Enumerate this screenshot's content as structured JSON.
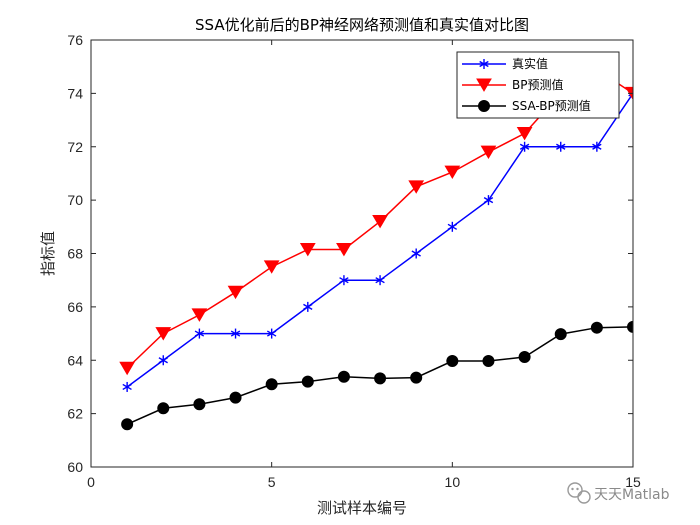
{
  "chart_data": {
    "type": "line",
    "title": "SSA优化前后的BP神经网络预测值和真实值对比图",
    "xlabel": "测试样本编号",
    "ylabel": "指标值",
    "xlim": [
      0,
      15
    ],
    "ylim": [
      60,
      76
    ],
    "xticks": [
      0,
      5,
      10,
      15
    ],
    "yticks": [
      60,
      62,
      64,
      66,
      68,
      70,
      72,
      74,
      76
    ],
    "grid": false,
    "legend_position": "top-right",
    "x": [
      1,
      2,
      3,
      4,
      5,
      6,
      7,
      8,
      9,
      10,
      11,
      12,
      13,
      14,
      15
    ],
    "series": [
      {
        "name": "真实值",
        "color": "#0000ff",
        "marker": "asterisk",
        "values": [
          63,
          64,
          65,
          65,
          65,
          66,
          67,
          67,
          68,
          69,
          70,
          72,
          72,
          72,
          74
        ]
      },
      {
        "name": "BP预测值",
        "color": "#ff0000",
        "marker": "triangle-down",
        "values": [
          63.7,
          65.0,
          65.7,
          66.55,
          67.5,
          68.15,
          68.15,
          69.2,
          70.5,
          71.05,
          71.8,
          72.5,
          74.0,
          74.9,
          74.0
        ]
      },
      {
        "name": "SSA-BP预测值",
        "color": "#000000",
        "marker": "circle",
        "values": [
          61.6,
          62.2,
          62.35,
          62.6,
          63.1,
          63.2,
          63.38,
          63.32,
          63.35,
          63.97,
          63.97,
          64.12,
          64.98,
          65.22,
          65.25
        ]
      }
    ]
  },
  "watermark": {
    "icon": "wechat-icon",
    "text": "天天Matlab"
  }
}
